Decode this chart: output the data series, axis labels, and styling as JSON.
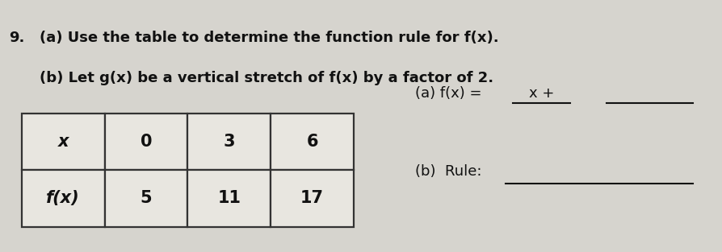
{
  "problem_number": "9.",
  "instruction_a": "(a) Use the table to determine the function rule for f(x).",
  "instruction_b": "(b) Let g(x) be a vertical stretch of f(x) by a factor of 2.",
  "table_headers": [
    "x",
    "0",
    "3",
    "6"
  ],
  "table_row2_label": "f(x)",
  "table_row2_values": [
    "5",
    "11",
    "17"
  ],
  "answer_a_label": "(a) f(x) =",
  "answer_a_mid": "x +",
  "answer_b_label": "(b)  Rule:",
  "bg_color": "#d6d4ce",
  "table_cell_color": "#e8e6e0",
  "table_border_color": "#333333",
  "text_color": "#111111"
}
